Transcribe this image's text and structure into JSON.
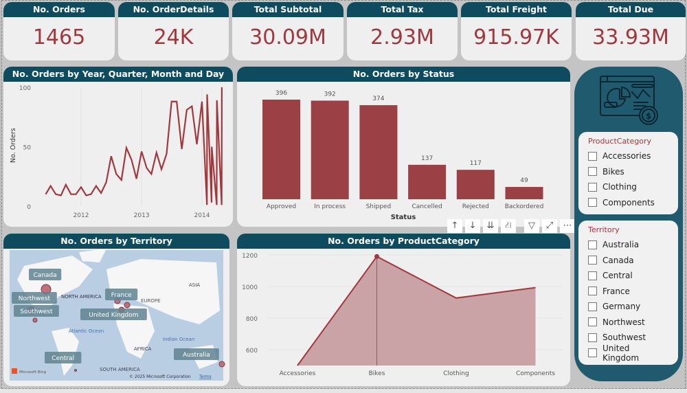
{
  "kpis": [
    {
      "label": "No. Orders",
      "value": "1465"
    },
    {
      "label": "No. OrderDetails",
      "value": "24K"
    },
    {
      "label": "Total Subtotal",
      "value": "30.09M"
    },
    {
      "label": "Total Tax",
      "value": "2.93M"
    },
    {
      "label": "Total Freight",
      "value": "915.97K"
    },
    {
      "label": "Total Due",
      "value": "33.93M"
    }
  ],
  "colors": {
    "header": "#0f4b5e",
    "accent": "#a2373d",
    "bar": "#9b4146",
    "area_fill": "#c9a3a5",
    "side_panel": "#1f5a6e"
  },
  "chart_data": [
    {
      "type": "line",
      "title": "No. Orders by Year, Quarter, Month and Day",
      "xlabel": "",
      "ylabel": "No. Orders",
      "ylim": [
        0,
        100
      ],
      "yticks": [
        "0",
        "50",
        "100"
      ],
      "xticks": [
        "2012",
        "2013",
        "2014"
      ],
      "x": [
        "2011-06-01",
        "2011-07-01",
        "2011-08-01",
        "2011-09-01",
        "2011-10-01",
        "2011-11-01",
        "2011-12-01",
        "2012-01-01",
        "2012-02-01",
        "2012-03-01",
        "2012-04-01",
        "2012-05-01",
        "2012-06-01",
        "2012-07-01",
        "2012-08-01",
        "2012-09-01",
        "2012-10-01",
        "2012-11-01",
        "2012-12-01",
        "2013-01-01",
        "2013-02-01",
        "2013-03-01",
        "2013-04-01",
        "2013-05-01",
        "2013-06-01",
        "2013-07-01",
        "2013-08-01",
        "2013-09-01",
        "2013-10-01",
        "2013-11-01",
        "2013-12-01",
        "2014-01-01",
        "2014-01-31",
        "2014-02-01",
        "2014-02-28",
        "2014-03-01",
        "2014-03-31",
        "2014-04-01",
        "2014-04-30",
        "2014-05-01"
      ],
      "values": [
        10,
        17,
        10,
        9,
        18,
        10,
        10,
        16,
        9,
        10,
        17,
        11,
        20,
        42,
        27,
        22,
        49,
        39,
        23,
        46,
        32,
        27,
        45,
        31,
        44,
        88,
        88,
        48,
        81,
        84,
        52,
        88,
        1,
        94,
        3,
        50,
        1,
        89,
        1,
        100
      ]
    },
    {
      "type": "bar",
      "title": "No. Orders by Status",
      "xlabel": "Status",
      "categories": [
        "Approved",
        "In process",
        "Shipped",
        "Cancelled",
        "Rejected",
        "Backordered"
      ],
      "values": [
        396,
        392,
        374,
        137,
        117,
        49
      ],
      "labels": [
        "396",
        "392",
        "374",
        "137",
        "117",
        "49"
      ]
    },
    {
      "type": "area",
      "title": "No. Orders by ProductCategory",
      "categories": [
        "Accessories",
        "Bikes",
        "Clothing",
        "Components"
      ],
      "values": [
        500,
        1190,
        927,
        993
      ],
      "ylim": [
        500,
        1200
      ],
      "yticks": [
        "600",
        "800",
        "1000",
        "1200"
      ]
    }
  ],
  "map": {
    "title": "No. Orders by Territory",
    "regions": [
      "Canada",
      "Northwest",
      "Southwest",
      "France",
      "United Kingdom",
      "Central",
      "Australia"
    ],
    "geo_labels": [
      "NORTH AMERICA",
      "EUROPE",
      "ASIA",
      "Atlantic Ocean",
      "AFRICA",
      "SOUTH AMERICA",
      "Indian Ocean"
    ],
    "brand": "Microsoft Bing",
    "copyright": "© 2025 Microsoft Corporation",
    "terms": "Terms"
  },
  "slicers": {
    "product": {
      "title": "ProductCategory",
      "items": [
        "Accessories",
        "Bikes",
        "Clothing",
        "Components"
      ]
    },
    "territory": {
      "title": "Territory",
      "items": [
        "Australia",
        "Canada",
        "Central",
        "France",
        "Germany",
        "Northwest",
        "Southwest",
        "United Kingdom"
      ]
    }
  },
  "toolbar": {
    "icons": [
      "arrow-up-icon",
      "arrow-down-icon",
      "double-arrow-down-icon",
      "expand-hierarchy-icon",
      "filter-icon",
      "focus-mode-icon",
      "more-options-icon"
    ],
    "glyphs": [
      "↑",
      "↓",
      "⇊",
      "⛙",
      "▽",
      "⤢",
      "⋯"
    ]
  }
}
